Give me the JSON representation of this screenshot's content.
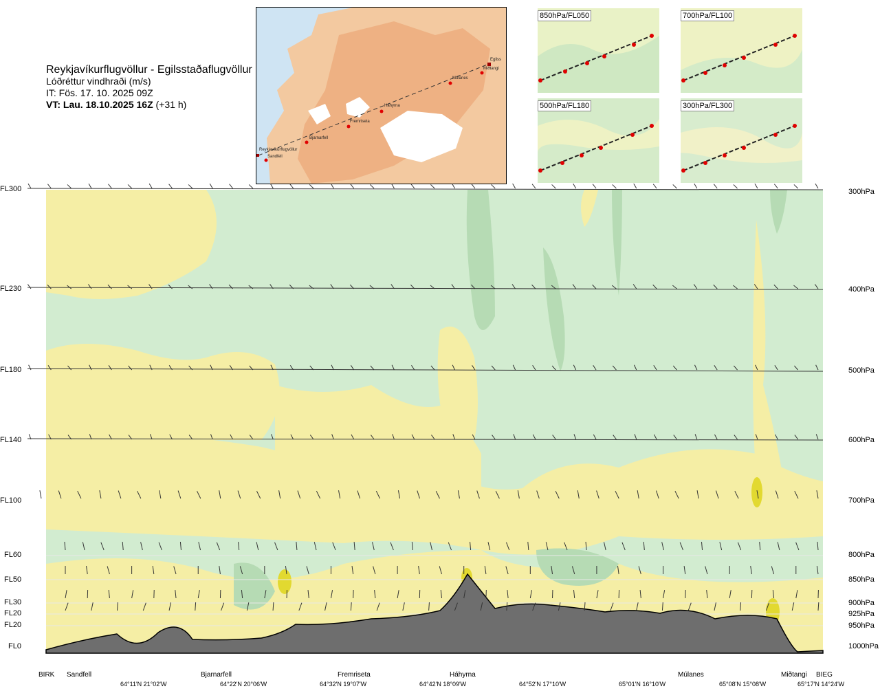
{
  "header": {
    "route": "Reykjavíkurflugvöllur - Egilsstaðaflugvöllur",
    "parameter": "Lóðréttur vindhraði (m/s)",
    "analysis_time": "IT: Fös. 17. 10. 2025 09Z",
    "valid_prefix": "VT: Lau. 18.10.2025 16Z",
    "valid_suffix": " (+31 h)"
  },
  "map": {
    "places": [
      {
        "name": "Reykjavíkurflugvöllur"
      },
      {
        "name": "Sandfell"
      },
      {
        "name": "Bjarnarfell"
      },
      {
        "name": "Fremriseta"
      },
      {
        "name": "Háhyrna"
      },
      {
        "name": "Múlanes"
      },
      {
        "name": "Miðtangi"
      },
      {
        "name": "Egilss"
      }
    ]
  },
  "minimaps": [
    {
      "label": "850hPa/FL050"
    },
    {
      "label": "700hPa/FL100"
    },
    {
      "label": "500hPa/FL180"
    },
    {
      "label": "300hPa/FL300"
    }
  ],
  "colors": {
    "updraft_light": "#f5eea5",
    "updraft_strong": "#e2d930",
    "downdraft_light": "#d2ecd0",
    "downdraft_medium": "#b6dbb4",
    "downdraft_strong": "#94c596",
    "terrain": "#6e6e6e",
    "pale": "#fbfbe4"
  },
  "chart_data": {
    "type": "heatmap",
    "title": "Lóðréttur vindhraði (m/s)",
    "flight_levels": [
      "FL300",
      "FL230",
      "FL180",
      "FL140",
      "FL100",
      "FL60",
      "FL50",
      "FL30",
      "FL20",
      "FL20",
      "FL0"
    ],
    "pressure_levels": [
      "300hPa",
      "400hPa",
      "500hPa",
      "600hPa",
      "700hPa",
      "800hPa",
      "850hPa",
      "900hPa",
      "925hPa",
      "950hPa",
      "1000hPa"
    ],
    "waypoints": [
      "BIRK",
      "Sandfell",
      "Bjarnarfell",
      "Fremriseta",
      "Háhyrna",
      "Múlanes",
      "Miðtangi",
      "BIEG"
    ],
    "coordinates": [
      "64°11'N 21°02'W",
      "64°22'N 20°06'W",
      "64°32'N 19°07'W",
      "64°42'N 18°09'W",
      "64°52'N 17°10'W",
      "65°01'N 16°10'W",
      "65°08'N 15°08'W",
      "65°17'N 14°24'W"
    ]
  }
}
